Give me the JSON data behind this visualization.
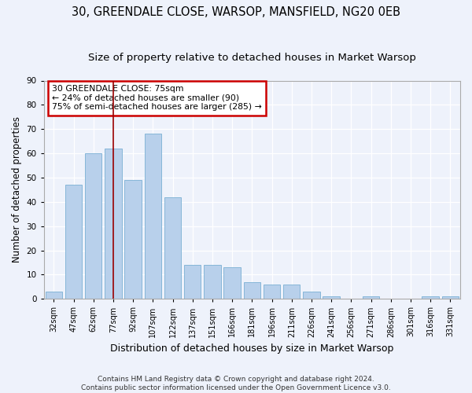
{
  "title1": "30, GREENDALE CLOSE, WARSOP, MANSFIELD, NG20 0EB",
  "title2": "Size of property relative to detached houses in Market Warsop",
  "xlabel": "Distribution of detached houses by size in Market Warsop",
  "ylabel": "Number of detached properties",
  "categories": [
    "32sqm",
    "47sqm",
    "62sqm",
    "77sqm",
    "92sqm",
    "107sqm",
    "122sqm",
    "137sqm",
    "151sqm",
    "166sqm",
    "181sqm",
    "196sqm",
    "211sqm",
    "226sqm",
    "241sqm",
    "256sqm",
    "271sqm",
    "286sqm",
    "301sqm",
    "316sqm",
    "331sqm"
  ],
  "values": [
    3,
    47,
    60,
    62,
    49,
    68,
    42,
    14,
    14,
    13,
    7,
    6,
    6,
    3,
    1,
    0,
    1,
    0,
    0,
    1,
    1
  ],
  "bar_color": "#b8d0eb",
  "bar_edge_color": "#7aafd4",
  "vline_x_index": 3,
  "vline_color": "#990000",
  "annotation_text": "30 GREENDALE CLOSE: 75sqm\n← 24% of detached houses are smaller (90)\n75% of semi-detached houses are larger (285) →",
  "annotation_box_color": "#ffffff",
  "annotation_box_edge_color": "#cc0000",
  "ylim": [
    0,
    90
  ],
  "yticks": [
    0,
    10,
    20,
    30,
    40,
    50,
    60,
    70,
    80,
    90
  ],
  "footer": "Contains HM Land Registry data © Crown copyright and database right 2024.\nContains public sector information licensed under the Open Government Licence v3.0.",
  "background_color": "#eef2fb",
  "grid_color": "#ffffff",
  "title_fontsize": 10.5,
  "subtitle_fontsize": 9.5,
  "tick_fontsize": 7.0,
  "ylabel_fontsize": 8.5,
  "xlabel_fontsize": 9.0,
  "footer_fontsize": 6.5
}
